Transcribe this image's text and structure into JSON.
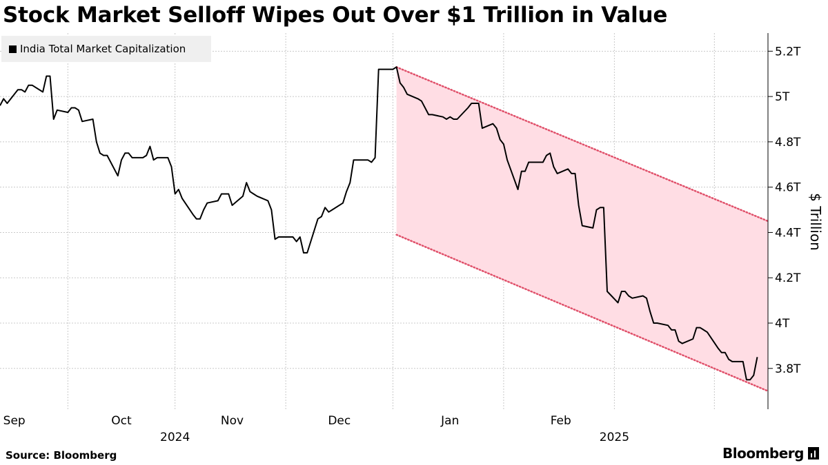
{
  "title": "Stock Market Selloff Wipes Out Over $1 Trillion in Value",
  "source": "Source: Bloomberg",
  "brand": "Bloomberg",
  "chart_data": {
    "type": "line",
    "series": [
      {
        "name": "India Total Market Capitalization",
        "color": "#000000",
        "points": [
          [
            "2024-08-28",
            4.96
          ],
          [
            "2024-08-29",
            4.99
          ],
          [
            "2024-08-30",
            4.97
          ],
          [
            "2024-09-02",
            5.03
          ],
          [
            "2024-09-03",
            5.03
          ],
          [
            "2024-09-04",
            5.02
          ],
          [
            "2024-09-05",
            5.05
          ],
          [
            "2024-09-06",
            5.05
          ],
          [
            "2024-09-09",
            5.02
          ],
          [
            "2024-09-10",
            5.09
          ],
          [
            "2024-09-11",
            5.09
          ],
          [
            "2024-09-12",
            4.9
          ],
          [
            "2024-09-13",
            4.94
          ],
          [
            "2024-09-16",
            4.93
          ],
          [
            "2024-09-17",
            4.95
          ],
          [
            "2024-09-18",
            4.95
          ],
          [
            "2024-09-19",
            4.94
          ],
          [
            "2024-09-20",
            4.89
          ],
          [
            "2024-09-23",
            4.9
          ],
          [
            "2024-09-24",
            4.8
          ],
          [
            "2024-09-25",
            4.75
          ],
          [
            "2024-09-26",
            4.74
          ],
          [
            "2024-09-27",
            4.74
          ],
          [
            "2024-09-30",
            4.65
          ],
          [
            "2024-10-01",
            4.72
          ],
          [
            "2024-10-02",
            4.75
          ],
          [
            "2024-10-03",
            4.75
          ],
          [
            "2024-10-04",
            4.73
          ],
          [
            "2024-10-07",
            4.73
          ],
          [
            "2024-10-08",
            4.74
          ],
          [
            "2024-10-09",
            4.78
          ],
          [
            "2024-10-10",
            4.72
          ],
          [
            "2024-10-11",
            4.73
          ],
          [
            "2024-10-14",
            4.73
          ],
          [
            "2024-10-15",
            4.69
          ],
          [
            "2024-10-16",
            4.57
          ],
          [
            "2024-10-17",
            4.59
          ],
          [
            "2024-10-18",
            4.55
          ],
          [
            "2024-10-21",
            4.48
          ],
          [
            "2024-10-22",
            4.46
          ],
          [
            "2024-10-23",
            4.46
          ],
          [
            "2024-10-24",
            4.5
          ],
          [
            "2024-10-25",
            4.53
          ],
          [
            "2024-10-28",
            4.54
          ],
          [
            "2024-10-29",
            4.57
          ],
          [
            "2024-10-30",
            4.57
          ],
          [
            "2024-10-31",
            4.57
          ],
          [
            "2024-11-01",
            4.52
          ],
          [
            "2024-11-04",
            4.56
          ],
          [
            "2024-11-05",
            4.62
          ],
          [
            "2024-11-06",
            4.58
          ],
          [
            "2024-11-07",
            4.57
          ],
          [
            "2024-11-08",
            4.56
          ],
          [
            "2024-11-11",
            4.54
          ],
          [
            "2024-11-12",
            4.5
          ],
          [
            "2024-11-13",
            4.37
          ],
          [
            "2024-11-14",
            4.38
          ],
          [
            "2024-11-18",
            4.38
          ],
          [
            "2024-11-19",
            4.36
          ],
          [
            "2024-11-20",
            4.38
          ],
          [
            "2024-11-21",
            4.31
          ],
          [
            "2024-11-22",
            4.31
          ],
          [
            "2024-11-25",
            4.46
          ],
          [
            "2024-11-26",
            4.47
          ],
          [
            "2024-11-27",
            4.51
          ],
          [
            "2024-11-28",
            4.49
          ],
          [
            "2024-11-29",
            4.5
          ],
          [
            "2024-12-02",
            4.53
          ],
          [
            "2024-12-03",
            4.58
          ],
          [
            "2024-12-04",
            4.62
          ],
          [
            "2024-12-05",
            4.72
          ],
          [
            "2024-12-06",
            4.72
          ],
          [
            "2024-12-09",
            4.72
          ],
          [
            "2024-12-10",
            4.71
          ],
          [
            "2024-12-11",
            4.73
          ],
          [
            "2024-12-12",
            5.12
          ],
          [
            "2024-12-13",
            5.12
          ],
          [
            "2024-12-16",
            5.12
          ],
          [
            "2024-12-17",
            5.13
          ],
          [
            "2024-12-18",
            5.06
          ],
          [
            "2024-12-19",
            5.04
          ],
          [
            "2024-12-20",
            5.01
          ],
          [
            "2024-12-23",
            4.99
          ],
          [
            "2024-12-24",
            4.98
          ],
          [
            "2024-12-26",
            4.92
          ],
          [
            "2024-12-27",
            4.92
          ],
          [
            "2024-12-30",
            4.91
          ],
          [
            "2024-12-31",
            4.9
          ],
          [
            "2025-01-01",
            4.91
          ],
          [
            "2025-01-02",
            4.9
          ],
          [
            "2025-01-03",
            4.9
          ],
          [
            "2025-01-06",
            4.95
          ],
          [
            "2025-01-07",
            4.97
          ],
          [
            "2025-01-08",
            4.97
          ],
          [
            "2025-01-09",
            4.97
          ],
          [
            "2025-01-10",
            4.86
          ],
          [
            "2025-01-13",
            4.88
          ],
          [
            "2025-01-14",
            4.86
          ],
          [
            "2025-01-15",
            4.81
          ],
          [
            "2025-01-16",
            4.79
          ],
          [
            "2025-01-17",
            4.72
          ],
          [
            "2025-01-20",
            4.59
          ],
          [
            "2025-01-21",
            4.67
          ],
          [
            "2025-01-22",
            4.67
          ],
          [
            "2025-01-23",
            4.71
          ],
          [
            "2025-01-24",
            4.71
          ],
          [
            "2025-01-27",
            4.71
          ],
          [
            "2025-01-28",
            4.74
          ],
          [
            "2025-01-29",
            4.75
          ],
          [
            "2025-01-30",
            4.69
          ],
          [
            "2025-01-31",
            4.66
          ],
          [
            "2025-02-03",
            4.68
          ],
          [
            "2025-02-04",
            4.66
          ],
          [
            "2025-02-05",
            4.66
          ],
          [
            "2025-02-06",
            4.52
          ],
          [
            "2025-02-07",
            4.43
          ],
          [
            "2025-02-10",
            4.42
          ],
          [
            "2025-02-11",
            4.5
          ],
          [
            "2025-02-12",
            4.51
          ],
          [
            "2025-02-13",
            4.51
          ],
          [
            "2025-02-14",
            4.14
          ],
          [
            "2025-02-17",
            4.09
          ],
          [
            "2025-02-18",
            4.14
          ],
          [
            "2025-02-19",
            4.14
          ],
          [
            "2025-02-20",
            4.12
          ],
          [
            "2025-02-21",
            4.11
          ],
          [
            "2025-02-24",
            4.12
          ],
          [
            "2025-02-25",
            4.11
          ],
          [
            "2025-02-26",
            4.05
          ],
          [
            "2025-02-27",
            4.0
          ],
          [
            "2025-02-28",
            4.0
          ],
          [
            "2025-03-03",
            3.99
          ],
          [
            "2025-03-04",
            3.97
          ],
          [
            "2025-03-05",
            3.97
          ],
          [
            "2025-03-06",
            3.92
          ],
          [
            "2025-03-07",
            3.91
          ],
          [
            "2025-03-10",
            3.93
          ],
          [
            "2025-03-11",
            3.98
          ],
          [
            "2025-03-12",
            3.98
          ],
          [
            "2025-03-13",
            3.97
          ],
          [
            "2025-03-14",
            3.96
          ],
          [
            "2025-03-17",
            3.89
          ],
          [
            "2025-03-18",
            3.87
          ],
          [
            "2025-03-19",
            3.87
          ],
          [
            "2025-03-20",
            3.84
          ],
          [
            "2025-03-21",
            3.83
          ],
          [
            "2025-03-24",
            3.83
          ],
          [
            "2025-03-25",
            3.75
          ],
          [
            "2025-03-26",
            3.75
          ],
          [
            "2025-03-27",
            3.77
          ],
          [
            "2025-03-28",
            3.85
          ]
        ]
      }
    ],
    "channel": {
      "color": "#ffdde4",
      "line_color": "#e0506a",
      "upper": [
        [
          "2024-12-17",
          5.13
        ],
        [
          "2025-03-31",
          4.45
        ]
      ],
      "lower": [
        [
          "2024-12-17",
          4.39
        ],
        [
          "2025-03-31",
          3.7
        ]
      ]
    },
    "x_range": [
      "2024-08-28",
      "2025-03-31"
    ],
    "y_range": [
      3.62,
      5.28
    ],
    "y_ticks": [
      {
        "value": 3.8,
        "label": "3.8T"
      },
      {
        "value": 4.0,
        "label": "4T"
      },
      {
        "value": 4.2,
        "label": "4.2T"
      },
      {
        "value": 4.4,
        "label": "4.4T"
      },
      {
        "value": 4.6,
        "label": "4.6T"
      },
      {
        "value": 4.8,
        "label": "4.8T"
      },
      {
        "value": 5.0,
        "label": "5T"
      },
      {
        "value": 5.2,
        "label": "5.2T"
      }
    ],
    "x_ticks": [
      {
        "date": "2024-09-01",
        "label": "Sep"
      },
      {
        "date": "2024-10-01",
        "label": "Oct"
      },
      {
        "date": "2024-11-01",
        "label": "Nov"
      },
      {
        "date": "2024-12-01",
        "label": "Dec"
      },
      {
        "date": "2025-01-01",
        "label": "Jan"
      },
      {
        "date": "2025-02-01",
        "label": "Feb"
      }
    ],
    "gridlines_x": [
      "2024-09-16",
      "2024-10-16",
      "2024-11-16",
      "2024-12-16",
      "2025-01-16",
      "2025-02-16",
      "2025-03-16"
    ],
    "year_labels": [
      {
        "date": "2024-10-16",
        "label": "2024"
      },
      {
        "date": "2025-02-16",
        "label": "2025"
      }
    ],
    "ylabel": "$ Trillion",
    "grid": true,
    "legend_position": "top-left"
  }
}
